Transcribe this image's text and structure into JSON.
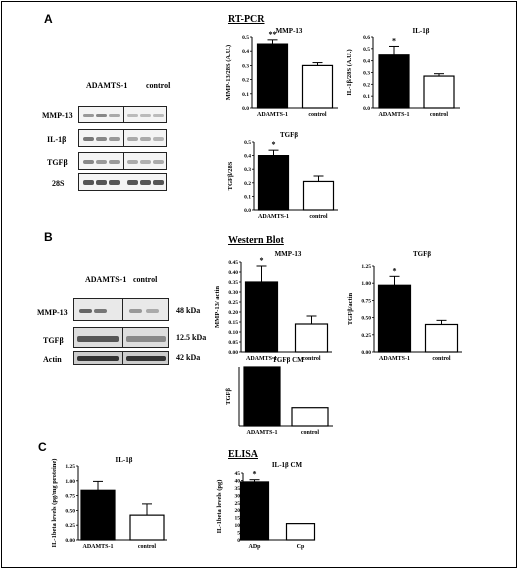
{
  "panels": [
    {
      "letter": "A",
      "section_title": "RT-PCR"
    },
    {
      "letter": "B",
      "section_title": "Western Blot"
    },
    {
      "letter": "C",
      "section_title": "ELISA"
    }
  ],
  "blots": {
    "A": {
      "col_labels": [
        "ADAMTS-1",
        "control"
      ],
      "rows": [
        "MMP-13",
        "IL-1β",
        "TGFβ",
        "28S"
      ]
    },
    "B": {
      "col_labels": [
        "ADAMTS-1",
        "control"
      ],
      "rows": [
        "MMP-13",
        "TGFβ",
        "Actin"
      ],
      "sizes": [
        "48 kDa",
        "12.5 kDa",
        "42 kDa"
      ]
    }
  },
  "colors": {
    "treatment_bar": "#000000",
    "control_bar": "#ffffff",
    "frame": "#000000"
  },
  "chart_data": [
    {
      "id": "a1",
      "type": "bar",
      "title": "MMP-13",
      "ylabel": "MMP-13/28S (A.U.)",
      "categories": [
        "ADAMTS-1",
        "control"
      ],
      "values": [
        0.45,
        0.3
      ],
      "errors": [
        0.03,
        0.02
      ],
      "ylim": [
        0,
        0.5
      ],
      "yticks": [
        "0.0",
        "0.1",
        "0.2",
        "0.3",
        "0.4",
        "0.5"
      ],
      "annotations": [
        "**",
        ""
      ]
    },
    {
      "id": "a2",
      "type": "bar",
      "title": "IL-1β",
      "ylabel": "IL-1β/28S (A.U.)",
      "categories": [
        "ADAMTS-1",
        "control"
      ],
      "values": [
        0.45,
        0.27
      ],
      "errors": [
        0.07,
        0.02
      ],
      "ylim": [
        0,
        0.6
      ],
      "yticks": [
        "0.0",
        "0.1",
        "0.2",
        "0.3",
        "0.4",
        "0.5",
        "0.6"
      ],
      "annotations": [
        "*",
        ""
      ]
    },
    {
      "id": "a3",
      "type": "bar",
      "title": "TGFβ",
      "ylabel": "TGFβ/28S",
      "categories": [
        "ADAMTS-1",
        "control"
      ],
      "values": [
        0.4,
        0.21
      ],
      "errors": [
        0.04,
        0.04
      ],
      "ylim": [
        0,
        0.5
      ],
      "yticks": [
        "0.0",
        "0.1",
        "0.2",
        "0.3",
        "0.4",
        "0.5"
      ],
      "annotations": [
        "*",
        ""
      ]
    },
    {
      "id": "b1",
      "type": "bar",
      "title": "MMP-13",
      "ylabel": "MMP-13/ actin",
      "categories": [
        "ADAMTS-1",
        "control"
      ],
      "values": [
        0.35,
        0.14
      ],
      "errors": [
        0.08,
        0.04
      ],
      "ylim": [
        0,
        0.45
      ],
      "yticks": [
        "0.00",
        "0.05",
        "0.10",
        "0.15",
        "0.20",
        "0.25",
        "0.30",
        "0.35",
        "0.40",
        "0.45"
      ],
      "annotations": [
        "*",
        ""
      ]
    },
    {
      "id": "b2",
      "type": "bar",
      "title": "TGFβ",
      "ylabel": "TGFβ/actin",
      "categories": [
        "ADAMTS-1",
        "control"
      ],
      "values": [
        0.97,
        0.4
      ],
      "errors": [
        0.13,
        0.06
      ],
      "ylim": [
        0,
        1.25
      ],
      "yticks": [
        "0.00",
        "0.25",
        "0.50",
        "0.75",
        "1.00",
        "1.25"
      ],
      "annotations": [
        "*",
        ""
      ]
    },
    {
      "id": "b3",
      "type": "bar",
      "title": "TGFβ CM",
      "ylabel": "TGFβ",
      "categories": [
        "ADAMTS-1",
        "control"
      ],
      "values": [
        1.0,
        0.31
      ],
      "errors": [
        0,
        0
      ],
      "ylim": [
        0,
        1.0
      ],
      "yticks": [],
      "annotations": [
        "",
        ""
      ]
    },
    {
      "id": "c1",
      "type": "bar",
      "title": "IL-1β",
      "ylabel": "IL-1beta levels (pg/mg proteine)",
      "categories": [
        "ADAMTS-1",
        "control"
      ],
      "values": [
        0.84,
        0.42
      ],
      "errors": [
        0.15,
        0.19
      ],
      "ylim": [
        0,
        1.25
      ],
      "yticks": [
        "0.00",
        "0.25",
        "0.50",
        "0.75",
        "1.00",
        "1.25"
      ],
      "annotations": [
        "",
        ""
      ]
    },
    {
      "id": "c2",
      "type": "bar",
      "title": "IL-1β CM",
      "ylabel": "IL-1beta levels (pg)",
      "categories": [
        "ADp",
        "Cp"
      ],
      "values": [
        39,
        11
      ],
      "errors": [
        1.5,
        0
      ],
      "ylim": [
        0,
        45
      ],
      "yticks": [
        "0",
        "5",
        "10",
        "15",
        "20",
        "25",
        "30",
        "35",
        "40",
        "45"
      ],
      "annotations": [
        "*",
        ""
      ]
    }
  ]
}
